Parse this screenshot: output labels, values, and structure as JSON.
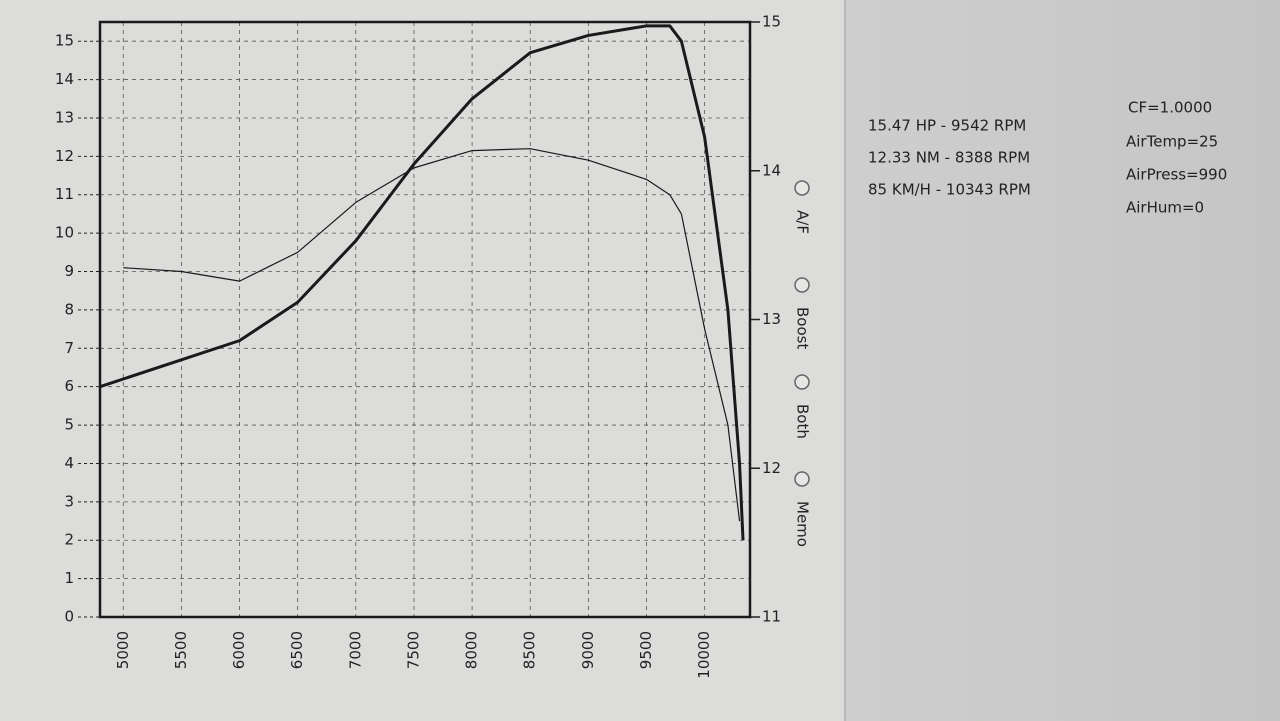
{
  "chart_data": {
    "type": "line",
    "x": [
      4800,
      5000,
      5500,
      6000,
      6500,
      7000,
      7500,
      8000,
      8500,
      9000,
      9500,
      9700,
      9800,
      10000,
      10200,
      10300,
      10330
    ],
    "series": [
      {
        "color": "#1a1a1a",
        "width": 3,
        "values": [
          6.0,
          6.2,
          6.7,
          7.2,
          8.2,
          9.8,
          11.8,
          13.5,
          14.7,
          15.15,
          15.4,
          15.4,
          15.0,
          12.5,
          8.0,
          4.0,
          2.0
        ]
      },
      {
        "color": "#1a1a1a",
        "width": 1.2,
        "values": [
          null,
          9.1,
          9.0,
          8.75,
          9.5,
          10.8,
          11.7,
          12.15,
          12.2,
          11.9,
          11.4,
          11.0,
          10.5,
          7.5,
          5.0,
          2.5,
          null
        ]
      }
    ],
    "xlim": [
      4800,
      10390
    ],
    "xticks": [
      5000,
      5500,
      6000,
      6500,
      7000,
      7500,
      8000,
      8500,
      9000,
      9500,
      10000
    ],
    "ylim": [
      0,
      15.5
    ],
    "yticks": [
      0,
      1,
      2,
      3,
      4,
      5,
      6,
      7,
      8,
      9,
      10,
      11,
      12,
      13,
      14,
      15
    ],
    "y2lim": [
      11,
      15
    ],
    "y2ticks": [
      11,
      12,
      13,
      14,
      15
    ],
    "grid": true
  },
  "panel": {
    "options": [
      "A/F",
      "Boost",
      "Both",
      "Memo"
    ],
    "readouts": [
      "15.47 HP - 9542 RPM",
      "12.33 NM - 8388 RPM",
      "85 KM/H - 10343 RPM"
    ],
    "conditions": [
      "CF=1.0000",
      "AirTemp=25",
      "AirPress=990",
      "AirHum=0"
    ]
  }
}
